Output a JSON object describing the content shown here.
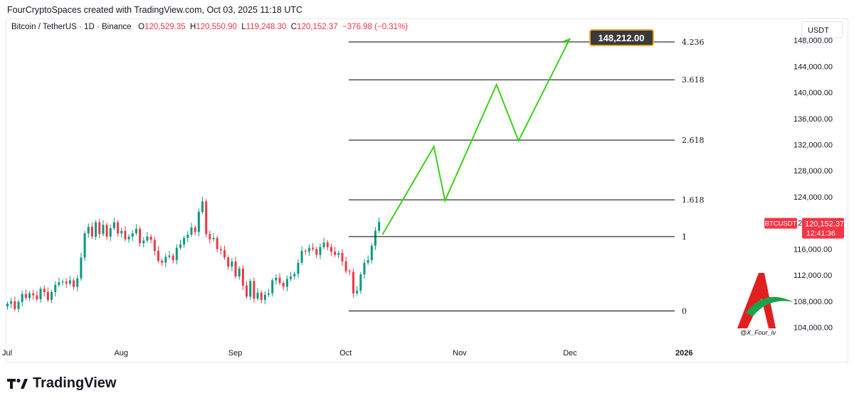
{
  "header": {
    "attribution": "FourCryptoSpaces created with TradingView.com, Oct 03, 2025 11:18 UTC"
  },
  "legend": {
    "symbol": "Bitcoin / TetherUS · 1D · Binance",
    "open_label": "O",
    "open": "120,529.35",
    "high_label": "H",
    "high": "120,550.90",
    "low_label": "L",
    "low": "119,248.30",
    "close_label": "C",
    "close": "120,152.37",
    "change": "−376.98 (−0.31%)"
  },
  "currency_button": "USDT",
  "target_label": "148,212.00",
  "price_tag": {
    "ticker": "BTCUSDT",
    "price": "120,152.37",
    "countdown": "12:41:36"
  },
  "watermark_handle": "@X_Four_iv",
  "footer": {
    "brand": "TradingView"
  },
  "colors": {
    "up": "#089981",
    "down": "#f23645",
    "projection": "#3cd11a",
    "target_bg": "#3a3a3a",
    "target_border": "#f2a531"
  },
  "chart_data": {
    "type": "candlestick",
    "ylim": [
      101000,
      152000
    ],
    "y_ticks": [
      "104,000.00",
      "108,000.00",
      "112,000.00",
      "116,000.00",
      "120,000.00",
      "124,000.00",
      "128,000.00",
      "132,000.00",
      "136,000.00",
      "140,000.00",
      "144,000.00",
      "148,000.00"
    ],
    "y_tick_values": [
      104000,
      108000,
      112000,
      116000,
      120000,
      124000,
      128000,
      132000,
      136000,
      140000,
      144000,
      148000
    ],
    "x_ticks": [
      "Jul",
      "Aug",
      "Sep",
      "Oct",
      "Nov",
      "Dec",
      "2026"
    ],
    "x_tick_days": [
      0,
      31,
      62,
      92,
      123,
      153,
      184
    ],
    "candles_close": [
      107600,
      108000,
      106800,
      107900,
      109100,
      108500,
      109200,
      108900,
      108300,
      109900,
      109400,
      108200,
      109400,
      110500,
      110900,
      111000,
      110700,
      111200,
      110200,
      111500,
      114700,
      118400,
      119400,
      117900,
      120100,
      118300,
      119700,
      117900,
      119200,
      120100,
      118400,
      118800,
      117500,
      117900,
      118400,
      119100,
      116900,
      117300,
      117900,
      117400,
      115700,
      114200,
      113900,
      114800,
      115000,
      114300,
      116200,
      116700,
      117700,
      118200,
      119300,
      118600,
      121700,
      123300,
      118300,
      117500,
      117700,
      116000,
      115800,
      114700,
      113300,
      114100,
      111800,
      113000,
      110400,
      108700,
      111100,
      108400,
      109300,
      108200,
      109000,
      109200,
      111200,
      111600,
      110800,
      110200,
      111400,
      111800,
      112200,
      113900,
      115700,
      115600,
      116200,
      116000,
      115100,
      116300,
      117000,
      116300,
      115600,
      115100,
      115400,
      114100,
      112600,
      112500,
      109200,
      109600,
      112100,
      113900,
      114300,
      116500,
      118800,
      120150
    ],
    "fib_levels": [
      {
        "label": "0",
        "value": 106500
      },
      {
        "label": "1",
        "value": 117900
      },
      {
        "label": "1.618",
        "value": 123550
      },
      {
        "label": "2.618",
        "value": 132700
      },
      {
        "label": "3.618",
        "value": 141950
      },
      {
        "label": "4.236",
        "value": 147750
      }
    ],
    "projection_path": [
      {
        "day": 102,
        "value": 118200
      },
      {
        "day": 116,
        "value": 131700
      },
      {
        "day": 119,
        "value": 123400
      },
      {
        "day": 133,
        "value": 141200
      },
      {
        "day": 139,
        "value": 132600
      },
      {
        "day": 153,
        "value": 148300
      }
    ]
  }
}
